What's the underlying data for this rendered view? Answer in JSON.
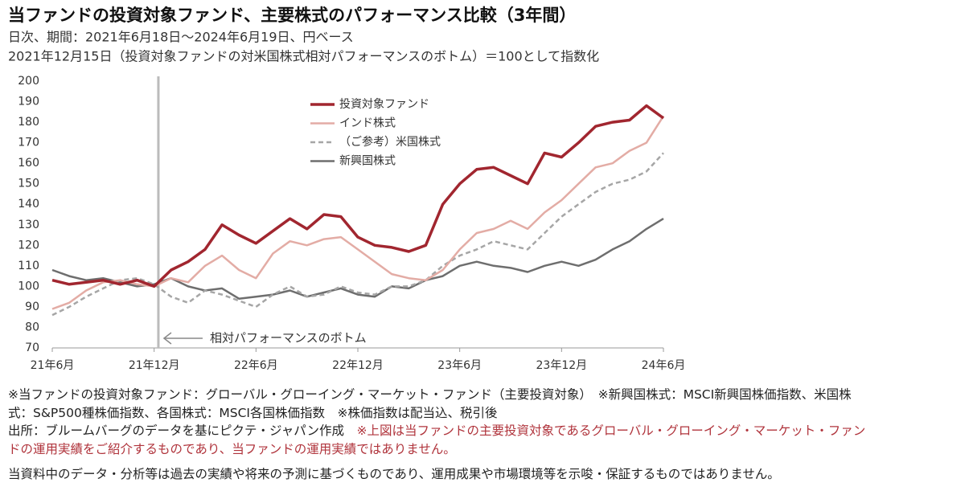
{
  "chart_data": {
    "type": "line",
    "title": "当ファンドの投資対象ファンド、主要株式のパフォーマンス比較（3年間）",
    "subtitle": [
      "日次、期間：2021年6月18日～2024年6月19日、円ベース",
      "2021年12月15日（投資対象ファンドの対米国株式相対パフォーマンスのボトム）＝100として指数化"
    ],
    "categories": [
      "21年6月",
      null,
      null,
      null,
      null,
      null,
      "21年12月",
      null,
      null,
      null,
      null,
      null,
      "22年6月",
      null,
      null,
      null,
      null,
      null,
      "22年12月",
      null,
      null,
      null,
      null,
      null,
      "23年6月",
      null,
      null,
      null,
      null,
      null,
      "23年12月",
      null,
      null,
      null,
      null,
      null,
      "24年6月"
    ],
    "series": [
      {
        "name": "投資対象ファンド",
        "color": "#a1262f",
        "dash": false,
        "width": 3.5,
        "values": [
          103,
          101,
          102,
          103,
          101,
          103,
          100,
          108,
          112,
          118,
          130,
          125,
          121,
          127,
          133,
          128,
          135,
          134,
          124,
          120,
          119,
          117,
          120,
          140,
          150,
          157,
          158,
          154,
          150,
          165,
          163,
          170,
          178,
          180,
          181,
          188,
          182
        ]
      },
      {
        "name": "インド株式",
        "color": "#e3aca5",
        "dash": false,
        "width": 2.5,
        "values": [
          89,
          92,
          98,
          102,
          103,
          101,
          100,
          104,
          102,
          110,
          115,
          108,
          104,
          116,
          122,
          120,
          123,
          124,
          118,
          112,
          106,
          104,
          103,
          108,
          118,
          126,
          128,
          132,
          128,
          136,
          142,
          150,
          158,
          160,
          166,
          170,
          183
        ]
      },
      {
        "name": "（ご参考）米国株式",
        "color": "#a6a6a6",
        "dash": true,
        "width": 2.5,
        "values": [
          86,
          90,
          95,
          99,
          103,
          104,
          101,
          95,
          92,
          98,
          96,
          93,
          90,
          96,
          100,
          95,
          96,
          100,
          97,
          96,
          100,
          100,
          103,
          110,
          115,
          118,
          122,
          120,
          118,
          126,
          134,
          140,
          146,
          150,
          152,
          156,
          165
        ]
      },
      {
        "name": "新興国株式",
        "color": "#6e6e6e",
        "dash": false,
        "width": 2.5,
        "values": [
          108,
          105,
          103,
          104,
          102,
          100,
          101,
          104,
          100,
          98,
          99,
          94,
          95,
          96,
          98,
          95,
          97,
          99,
          96,
          95,
          100,
          99,
          103,
          105,
          110,
          112,
          110,
          109,
          107,
          110,
          112,
          110,
          113,
          118,
          122,
          128,
          133
        ]
      }
    ],
    "ylim": [
      70,
      200
    ],
    "yticks": [
      70,
      80,
      90,
      100,
      110,
      120,
      130,
      140,
      150,
      160,
      170,
      180,
      190,
      200
    ],
    "annotation": {
      "text": "相対パフォーマンスのボトム",
      "x": "21年12月"
    }
  },
  "notes": {
    "lines": [
      [
        {
          "text": "※当ファンドの投資対象ファンド：グローバル・グローイング・マーケット・ファンド（主要投資対象）　※新興国株式：MSCI新興国株価指数、米国株",
          "red": false
        }
      ],
      [
        {
          "text": "式：S&P500種株価指数、各国株式：MSCI各国株価指数　※株価指数は配当込、税引後",
          "red": false
        }
      ],
      [
        {
          "text": "出所：ブルームバーグのデータを基にピクテ・ジャパン作成　",
          "red": false
        },
        {
          "text": "※上図は当ファンドの主要投資対象であるグローバル・グローイング・マーケット・ファン",
          "red": true
        }
      ],
      [
        {
          "text": "ドの運用実績をご紹介するものであり、当ファンドの運用実績ではありません。",
          "red": true
        }
      ]
    ],
    "disclaimer": "当資料中のデータ・分析等は過去の実績や将来の予測に基づくものであり、運用成果や市場環境等を示唆・保証するものではありません。"
  }
}
